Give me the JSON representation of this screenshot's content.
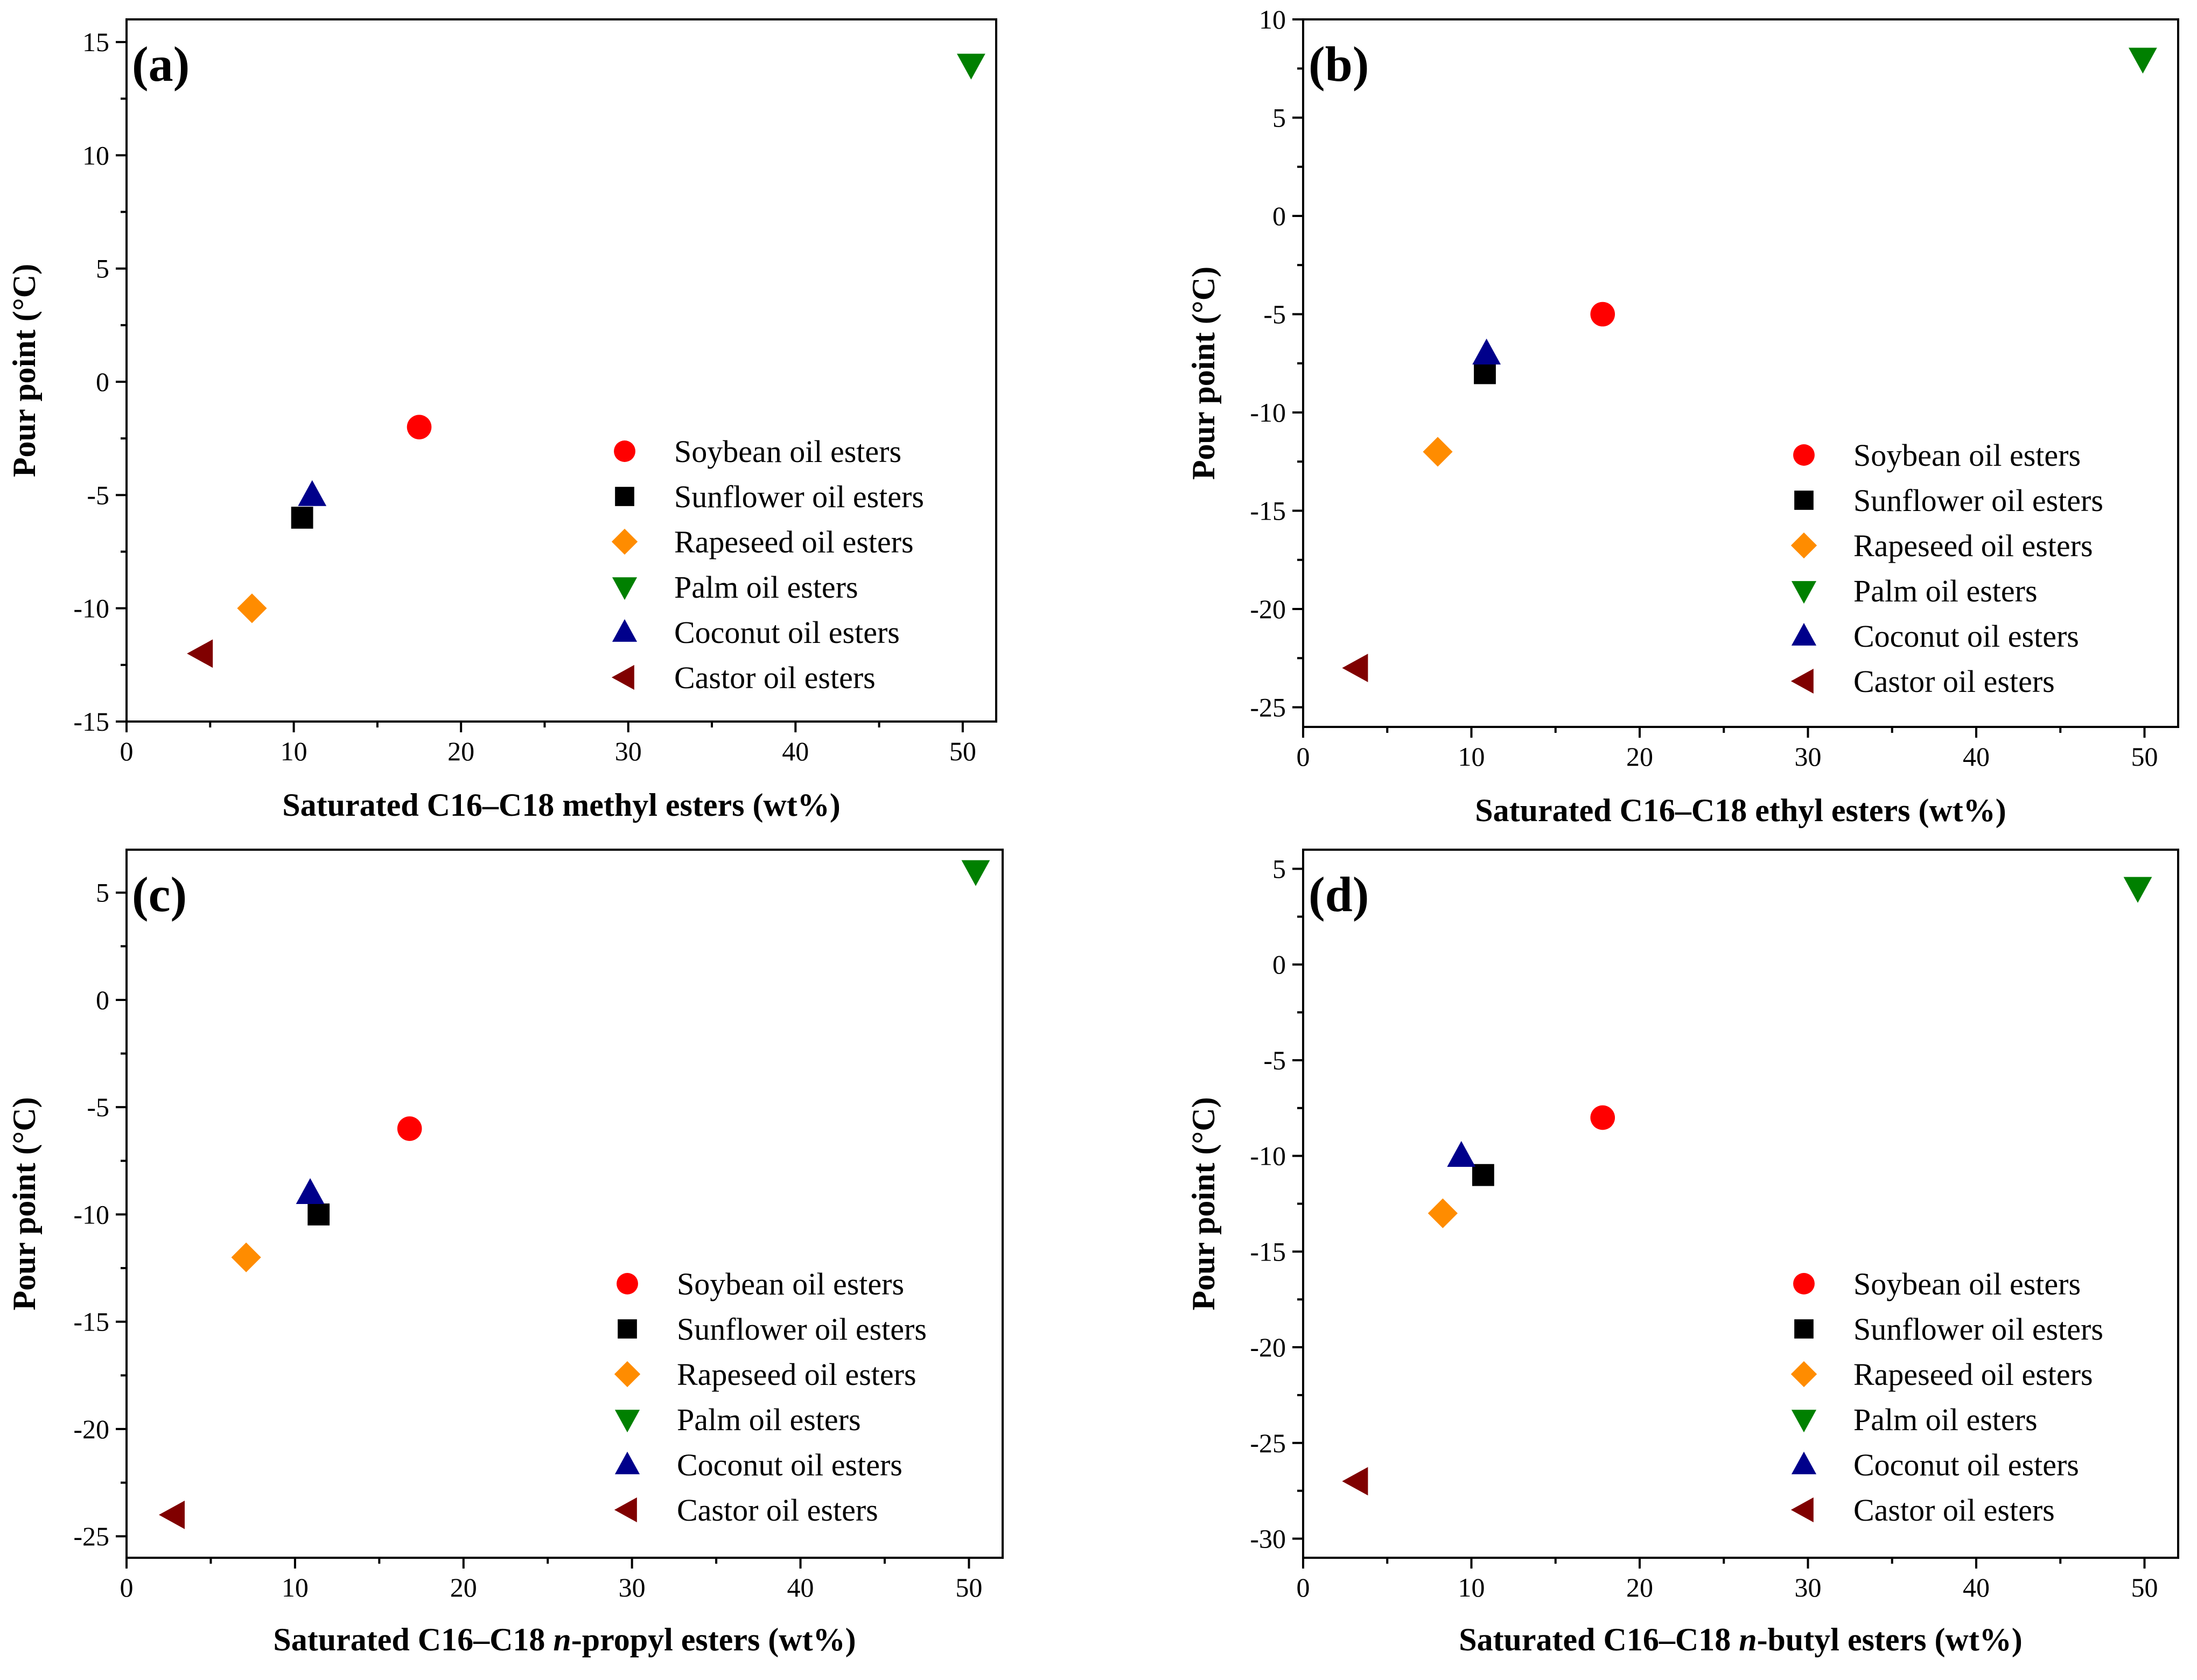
{
  "figure": {
    "panels": [
      {
        "label": "(a)",
        "xlabel_parts": [
          {
            "text": "Saturated C16–C18 ",
            "italic": false
          },
          {
            "text": "methyl esters (wt%)",
            "italic": false
          }
        ],
        "ylabel": "Pour point (°C)"
      },
      {
        "label": "(b)",
        "xlabel_parts": [
          {
            "text": "Saturated C16–C18 ",
            "italic": false
          },
          {
            "text": "ethyl esters (wt%)",
            "italic": false
          }
        ],
        "ylabel": "Pour point (°C)"
      },
      {
        "label": "(c)",
        "xlabel_parts": [
          {
            "text": "Saturated C16–C18 ",
            "italic": false
          },
          {
            "text": "n",
            "italic": true
          },
          {
            "text": "-propyl esters (wt%)",
            "italic": false
          }
        ],
        "ylabel": "Pour point (°C)"
      },
      {
        "label": "(d)",
        "xlabel_parts": [
          {
            "text": "Saturated C16–C18 ",
            "italic": false
          },
          {
            "text": "n",
            "italic": true
          },
          {
            "text": "-butyl esters (wt%)",
            "italic": false
          }
        ],
        "ylabel": "Pour point (°C)"
      }
    ]
  },
  "chart_data": [
    {
      "type": "scatter",
      "title": "(a)",
      "xlabel": "Saturated C16–C18 methyl esters (wt%)",
      "ylabel": "Pour point (°C)",
      "xlim": [
        0,
        52
      ],
      "ylim": [
        -15,
        16
      ],
      "xticks": [
        0,
        10,
        20,
        30,
        40,
        50
      ],
      "yticks": [
        -15,
        -10,
        -5,
        0,
        5,
        10,
        15
      ],
      "legend_position": "right-middle",
      "series": [
        {
          "name": "Soybean oil esters",
          "marker": "circle",
          "color": "#ff0000",
          "x": 17.5,
          "y": -2
        },
        {
          "name": "Sunflower oil esters",
          "marker": "square",
          "color": "#000000",
          "x": 10.5,
          "y": -6
        },
        {
          "name": "Rapeseed oil esters",
          "marker": "diamond",
          "color": "#ff8c00",
          "x": 7.5,
          "y": -10
        },
        {
          "name": "Palm oil esters",
          "marker": "triangle-down",
          "color": "#008000",
          "x": 50.5,
          "y": 14
        },
        {
          "name": "Coconut oil esters",
          "marker": "triangle-up",
          "color": "#00008b",
          "x": 11.1,
          "y": -5
        },
        {
          "name": "Castor oil esters",
          "marker": "triangle-left",
          "color": "#800000",
          "x": 4.5,
          "y": -12
        }
      ]
    },
    {
      "type": "scatter",
      "title": "(b)",
      "xlabel": "Saturated C16–C18 ethyl esters (wt%)",
      "ylabel": "Pour point (°C)",
      "xlim": [
        0,
        52
      ],
      "ylim": [
        -26,
        10
      ],
      "xticks": [
        0,
        10,
        20,
        30,
        40,
        50
      ],
      "yticks": [
        -25,
        -20,
        -15,
        -10,
        -5,
        0,
        5,
        10
      ],
      "legend_position": "right-middle",
      "series": [
        {
          "name": "Soybean oil esters",
          "marker": "circle",
          "color": "#ff0000",
          "x": 17.8,
          "y": -5
        },
        {
          "name": "Sunflower oil esters",
          "marker": "square",
          "color": "#000000",
          "x": 10.8,
          "y": -8
        },
        {
          "name": "Rapeseed oil esters",
          "marker": "diamond",
          "color": "#ff8c00",
          "x": 8,
          "y": -12
        },
        {
          "name": "Palm oil esters",
          "marker": "triangle-down",
          "color": "#008000",
          "x": 49.9,
          "y": 8
        },
        {
          "name": "Coconut oil esters",
          "marker": "triangle-up",
          "color": "#00008b",
          "x": 10.9,
          "y": -7
        },
        {
          "name": "Castor oil esters",
          "marker": "triangle-left",
          "color": "#800000",
          "x": 3.2,
          "y": -23
        }
      ]
    },
    {
      "type": "scatter",
      "title": "(c)",
      "xlabel": "Saturated C16–C18 n-propyl esters (wt%)",
      "ylabel": "Pour point (°C)",
      "xlim": [
        0,
        52
      ],
      "ylim": [
        -26,
        7
      ],
      "xticks": [
        0,
        10,
        20,
        30,
        40,
        50
      ],
      "yticks": [
        -25,
        -20,
        -15,
        -10,
        -5,
        0,
        5
      ],
      "legend_position": "right-middle",
      "series": [
        {
          "name": "Soybean oil esters",
          "marker": "circle",
          "color": "#ff0000",
          "x": 16.8,
          "y": -6
        },
        {
          "name": "Sunflower oil esters",
          "marker": "square",
          "color": "#000000",
          "x": 11.4,
          "y": -10
        },
        {
          "name": "Rapeseed oil esters",
          "marker": "diamond",
          "color": "#ff8c00",
          "x": 7.1,
          "y": -12
        },
        {
          "name": "Palm oil esters",
          "marker": "triangle-down",
          "color": "#008000",
          "x": 50.4,
          "y": 6
        },
        {
          "name": "Coconut oil esters",
          "marker": "triangle-up",
          "color": "#00008b",
          "x": 10.9,
          "y": -9
        },
        {
          "name": "Castor oil esters",
          "marker": "triangle-left",
          "color": "#800000",
          "x": 2.8,
          "y": -24
        }
      ]
    },
    {
      "type": "scatter",
      "title": "(d)",
      "xlabel": "Saturated C16–C18 n-butyl esters (wt%)",
      "ylabel": "Pour point (°C)",
      "xlim": [
        0,
        52
      ],
      "ylim": [
        -31,
        6
      ],
      "xticks": [
        0,
        10,
        20,
        30,
        40,
        50
      ],
      "yticks": [
        -30,
        -25,
        -20,
        -15,
        -10,
        -5,
        0,
        5
      ],
      "legend_position": "right-middle",
      "series": [
        {
          "name": "Soybean oil esters",
          "marker": "circle",
          "color": "#ff0000",
          "x": 17.8,
          "y": -8
        },
        {
          "name": "Sunflower oil esters",
          "marker": "square",
          "color": "#000000",
          "x": 10.7,
          "y": -11
        },
        {
          "name": "Rapeseed oil esters",
          "marker": "diamond",
          "color": "#ff8c00",
          "x": 8.3,
          "y": -13
        },
        {
          "name": "Palm oil esters",
          "marker": "triangle-down",
          "color": "#008000",
          "x": 49.6,
          "y": 4
        },
        {
          "name": "Coconut oil esters",
          "marker": "triangle-up",
          "color": "#00008b",
          "x": 9.4,
          "y": -10
        },
        {
          "name": "Castor oil esters",
          "marker": "triangle-left",
          "color": "#800000",
          "x": 3.2,
          "y": -27
        }
      ]
    }
  ]
}
